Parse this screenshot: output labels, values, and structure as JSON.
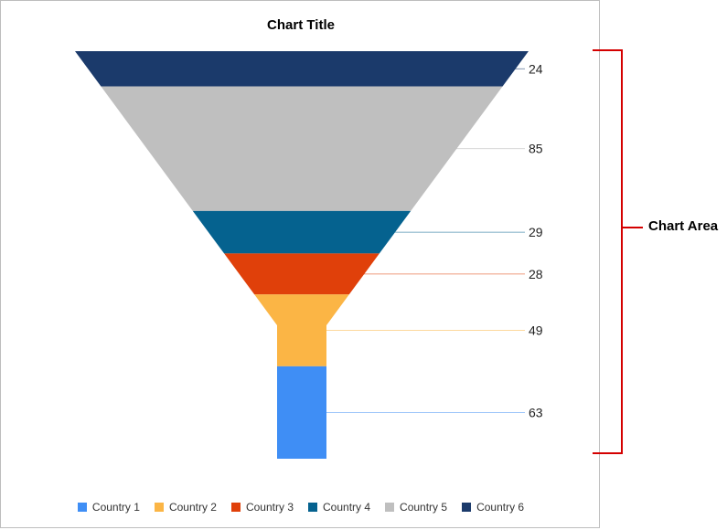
{
  "chart_data": {
    "type": "funnel",
    "title": "Chart Title",
    "categories": [
      "Country 6",
      "Country 5",
      "Country 4",
      "Country 3",
      "Country 2",
      "Country 1"
    ],
    "values": [
      24,
      85,
      29,
      28,
      49,
      63
    ],
    "series_colors": [
      "#1b3a6b",
      "#bfbfbf",
      "#05628f",
      "#e0400a",
      "#fbb545",
      "#3f8ef5"
    ],
    "legend": {
      "position": "bottom",
      "entries": [
        {
          "label": "Country 1",
          "color": "#3f8ef5"
        },
        {
          "label": "Country 2",
          "color": "#fbb545"
        },
        {
          "label": "Country 3",
          "color": "#e0400a"
        },
        {
          "label": "Country 4",
          "color": "#05628f"
        },
        {
          "label": "Country 5",
          "color": "#bfbfbf"
        },
        {
          "label": "Country 6",
          "color": "#1b3a6b"
        }
      ]
    }
  },
  "annotation": {
    "label": "Chart Area",
    "color": "#d40000"
  }
}
